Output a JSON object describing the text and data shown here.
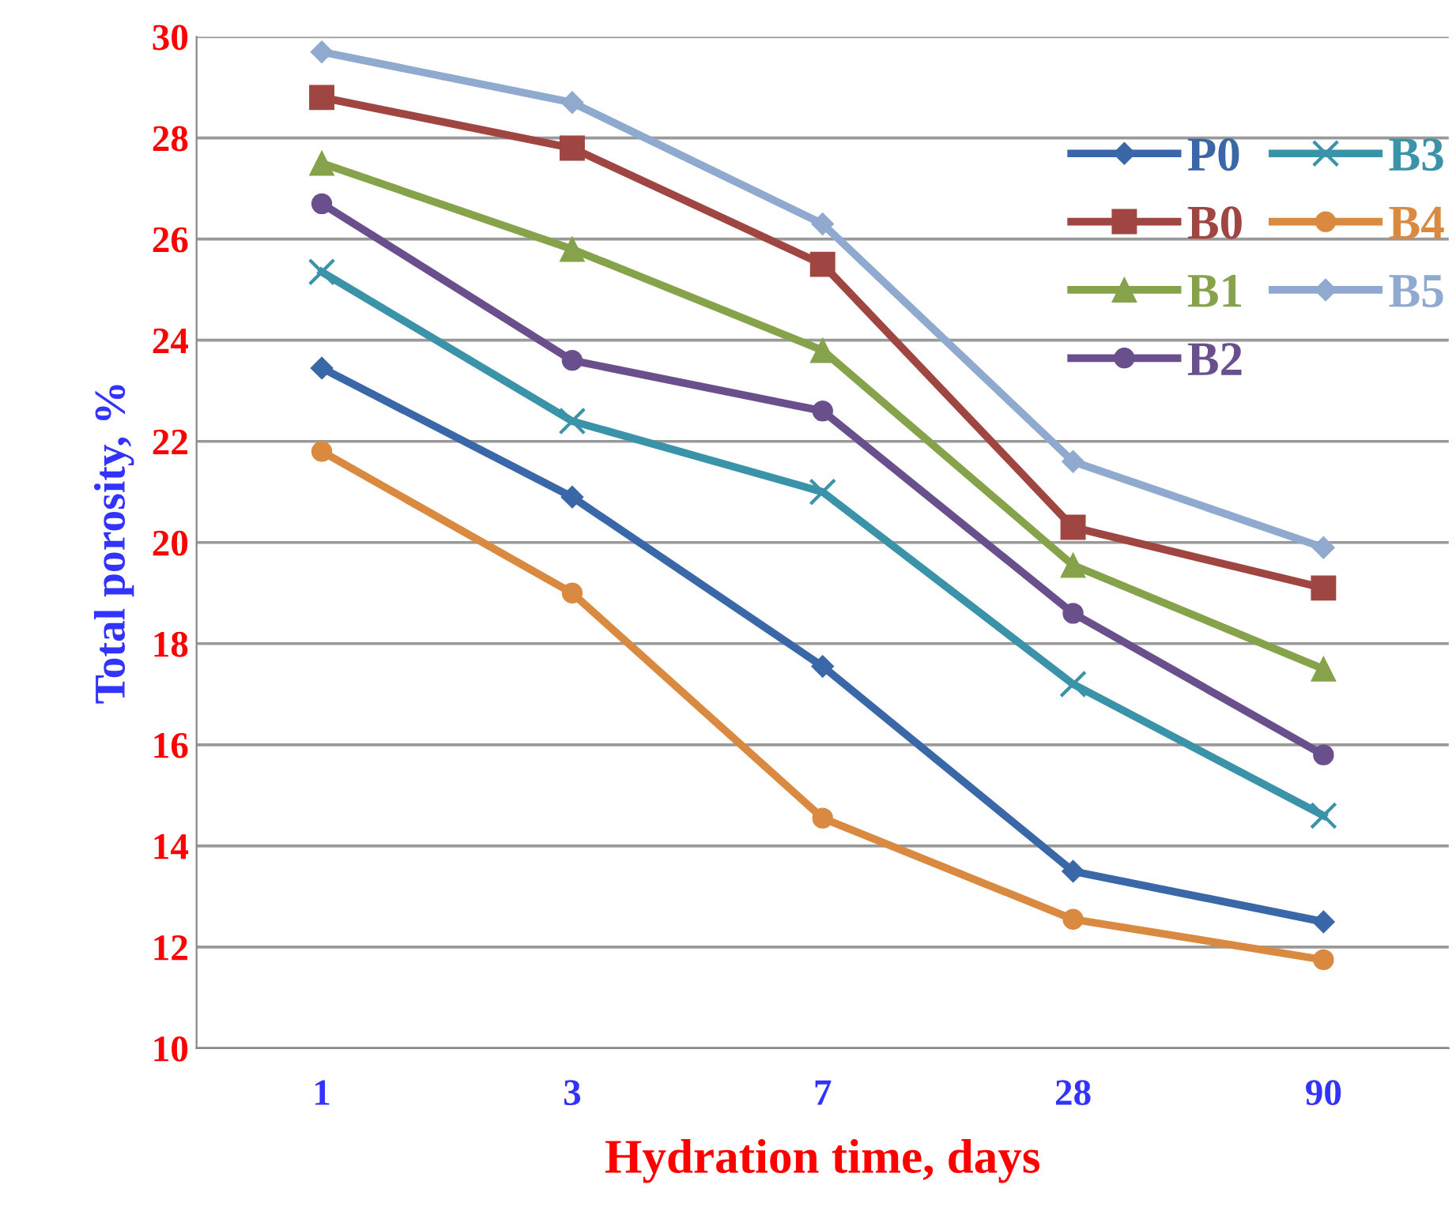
{
  "chart_data": {
    "type": "line",
    "xlabel": "Hydration time, days",
    "ylabel": "Total porosity, %",
    "categories": [
      "1",
      "3",
      "7",
      "28",
      "90"
    ],
    "ylim": [
      10,
      30
    ],
    "yticks": [
      10,
      12,
      14,
      16,
      18,
      20,
      22,
      24,
      26,
      28,
      30
    ],
    "grid": "y",
    "legend": "top right",
    "series": [
      {
        "name": "P0",
        "color": "#3a67a8",
        "marker": "diamond",
        "values": [
          23.45,
          20.9,
          17.55,
          13.5,
          12.5
        ]
      },
      {
        "name": "B0",
        "color": "#a04642",
        "marker": "square",
        "values": [
          28.8,
          27.8,
          25.5,
          20.3,
          19.1
        ]
      },
      {
        "name": "B1",
        "color": "#86a24a",
        "marker": "triangle",
        "values": [
          27.5,
          25.8,
          23.8,
          19.55,
          17.5
        ]
      },
      {
        "name": "B2",
        "color": "#6a4f8d",
        "marker": "circle",
        "values": [
          26.7,
          23.6,
          22.6,
          18.6,
          15.8
        ]
      },
      {
        "name": "B3",
        "color": "#3a93a8",
        "marker": "cross",
        "values": [
          25.35,
          22.4,
          21.0,
          17.2,
          14.6
        ]
      },
      {
        "name": "B4",
        "color": "#d98a40",
        "marker": "circle",
        "values": [
          21.8,
          19.0,
          14.55,
          12.55,
          11.75
        ]
      },
      {
        "name": "B5",
        "color": "#8fa9cf",
        "marker": "diamond",
        "values": [
          29.7,
          28.7,
          26.3,
          21.6,
          19.9
        ]
      }
    ]
  }
}
